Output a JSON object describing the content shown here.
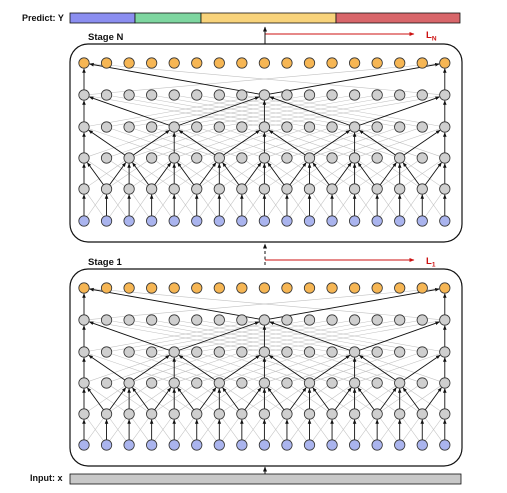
{
  "predict_label": "Predict: Y",
  "input_label": "Input: x",
  "predict_bar": {
    "segments": [
      {
        "color": "#8b8ef0"
      },
      {
        "color": "#7ed6a0"
      },
      {
        "color": "#f8d37b"
      },
      {
        "color": "#d8666a"
      }
    ]
  },
  "input_bar": {
    "color": "#c8c8c8"
  },
  "stages": [
    {
      "name": "Stage N",
      "loss": "L",
      "loss_sub": "N"
    },
    {
      "name": "Stage 1",
      "loss": "L",
      "loss_sub": "1"
    }
  ],
  "colors": {
    "input_node": "#aab4ee",
    "hidden_node": "#cfcfcf",
    "output_node": "#f6b654",
    "loss_arrow": "#cc1111",
    "edge_dark": "#111111",
    "edge_light": "#c2c2c2"
  },
  "network": {
    "columns": 17,
    "layers": [
      "input",
      "hidden",
      "hidden",
      "hidden",
      "hidden",
      "output"
    ]
  }
}
